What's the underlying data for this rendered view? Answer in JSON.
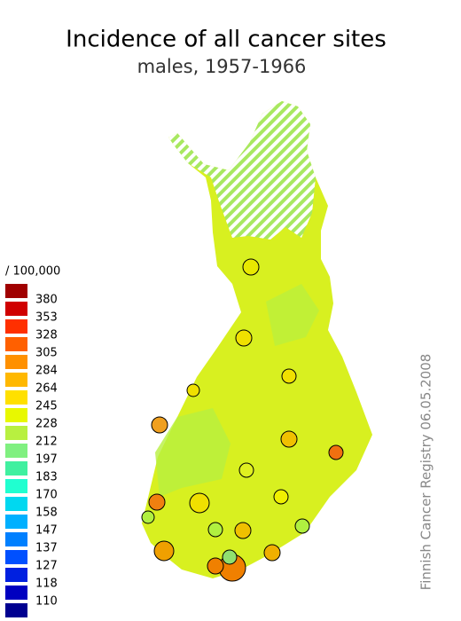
{
  "title": "Incidence of all cancer sites",
  "subtitle": "males, 1957-1966",
  "legend": {
    "unit": "/ 100,000",
    "labels": [
      380,
      353,
      328,
      305,
      284,
      264,
      245,
      228,
      212,
      197,
      183,
      170,
      158,
      147,
      137,
      127,
      118,
      110
    ],
    "colors": [
      "#a00000",
      "#d00000",
      "#ff3000",
      "#ff6000",
      "#ff9000",
      "#ffb800",
      "#ffe000",
      "#e8f800",
      "#b8f040",
      "#80f080",
      "#40f0a0",
      "#20ffd0",
      "#00d8f0",
      "#00b0ff",
      "#0080ff",
      "#0050ff",
      "#0020e0",
      "#0000c0",
      "#000090"
    ]
  },
  "credit": "Finnish Cancer Registry 06.05.2008"
}
